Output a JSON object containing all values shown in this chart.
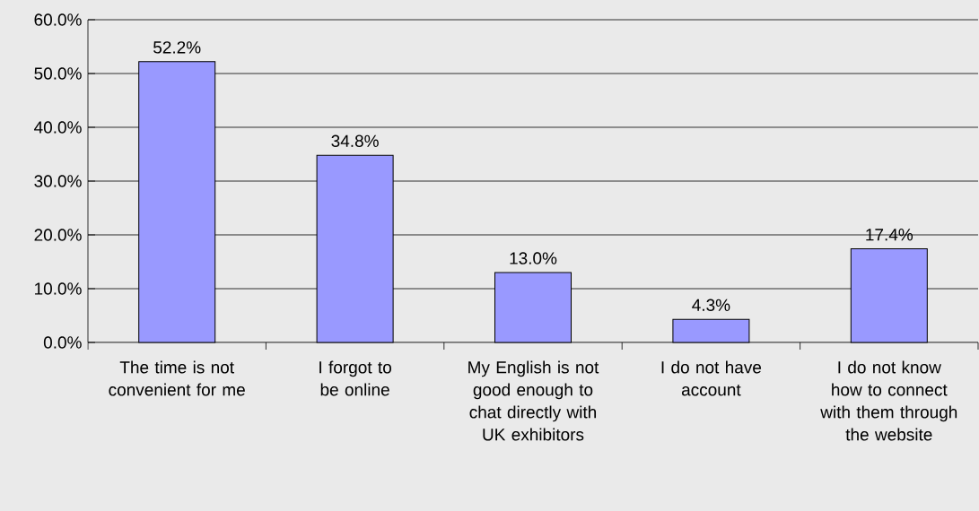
{
  "chart_data": {
    "type": "bar",
    "categories": [
      "The time is not convenient for me",
      "I forgot to be online",
      "My English is not good enough to chat directly with UK exhibitors",
      "I do not have account",
      "I do not know how to connect with them through the website"
    ],
    "values": [
      52.2,
      34.8,
      13.0,
      4.3,
      17.4
    ],
    "value_labels": [
      "52.2%",
      "34.8%",
      "13.0%",
      "4.3%",
      "17.4%"
    ],
    "color": "#9999ff",
    "ylim": [
      0,
      60
    ],
    "yticks": [
      {
        "value": 0,
        "label": "0.0%"
      },
      {
        "value": 10,
        "label": "10.0%"
      },
      {
        "value": 20,
        "label": "20.0%"
      },
      {
        "value": 30,
        "label": "30.0%"
      },
      {
        "value": 40,
        "label": "40.0%"
      },
      {
        "value": 50,
        "label": "50.0%"
      },
      {
        "value": 60,
        "label": "60.0%"
      }
    ],
    "grid": "y"
  }
}
